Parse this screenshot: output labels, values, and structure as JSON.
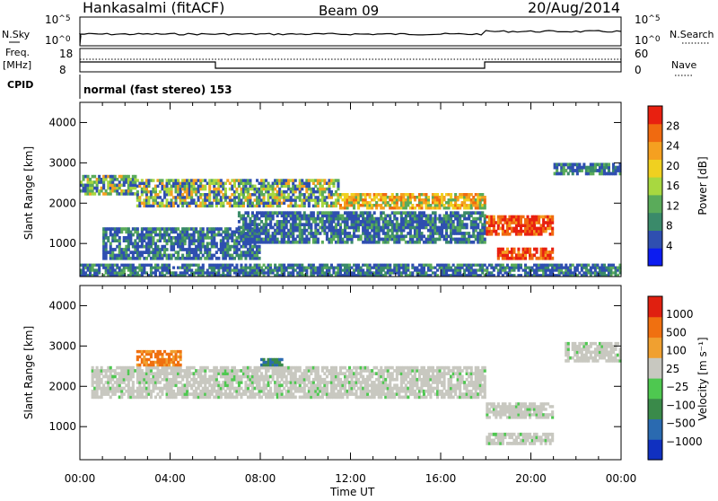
{
  "header": {
    "station": "Hankasalmi (fitACF)",
    "beam": "Beam 09",
    "date": "20/Aug/2014"
  },
  "noise_panel": {
    "left_label": "N.Sky",
    "right_label": "N.Search",
    "left_ticks": [
      {
        "base": "10",
        "exp": "^5"
      },
      {
        "base": "10",
        "exp": "^0"
      }
    ],
    "right_ticks": [
      {
        "base": "10",
        "exp": "^5"
      },
      {
        "base": "10",
        "exp": "^0"
      }
    ]
  },
  "freq_panel": {
    "left_label_1": "Freq.",
    "left_label_2": "[MHz]",
    "right_label": "Nave",
    "left_ticks": [
      "18",
      "8"
    ],
    "right_ticks": [
      "60",
      "0"
    ]
  },
  "cpid": {
    "label": "CPID",
    "value": "normal (fast stereo) 153"
  },
  "chart_data": [
    {
      "type": "heatmap",
      "name": "power",
      "ylabel": "Slant Range [km]",
      "ylim": [
        180,
        4500
      ],
      "yticks": [
        1000,
        2000,
        3000,
        4000
      ],
      "xlim_hours": [
        0,
        24
      ],
      "colorbar": {
        "label": "Power [dB]",
        "ticks": [
          "4",
          "8",
          "12",
          "16",
          "20",
          "24",
          "28"
        ],
        "colors": [
          "#0c1cf0",
          "#2f4fb0",
          "#3a8a6a",
          "#5aab5a",
          "#a8d840",
          "#f0d020",
          "#f5a020",
          "#f06a10",
          "#e82010"
        ]
      },
      "bands": [
        {
          "t": [
            0.0,
            2.5
          ],
          "r": [
            2200,
            2700
          ],
          "level": "mid"
        },
        {
          "t": [
            2.5,
            11.5
          ],
          "r": [
            1900,
            2600
          ],
          "level": "mid"
        },
        {
          "t": [
            11.5,
            18.0
          ],
          "r": [
            1850,
            2250
          ],
          "level": "high"
        },
        {
          "t": [
            1.0,
            8.0
          ],
          "r": [
            600,
            1400
          ],
          "level": "low"
        },
        {
          "t": [
            7.0,
            18.0
          ],
          "r": [
            1000,
            1800
          ],
          "level": "low"
        },
        {
          "t": [
            18.0,
            21.0
          ],
          "r": [
            1200,
            1700
          ],
          "level": "max"
        },
        {
          "t": [
            18.5,
            21.0
          ],
          "r": [
            600,
            900
          ],
          "level": "max"
        },
        {
          "t": [
            21.0,
            24.0
          ],
          "r": [
            2700,
            3000
          ],
          "level": "low"
        },
        {
          "t": [
            0.0,
            24.0
          ],
          "r": [
            180,
            500
          ],
          "level": "low"
        }
      ]
    },
    {
      "type": "heatmap",
      "name": "velocity",
      "ylabel": "Slant Range [km]",
      "ylim": [
        180,
        4500
      ],
      "yticks": [
        1000,
        2000,
        3000,
        4000
      ],
      "xlim_hours": [
        0,
        24
      ],
      "colorbar": {
        "label": "Velocity [m s⁻¹]",
        "ticks": [
          "1000",
          "500",
          "100",
          "25",
          "−25",
          "−100",
          "−500",
          "−1000"
        ],
        "colors": [
          "#1030c0",
          "#2a6ab0",
          "#3a8a4a",
          "#4ec850",
          "#c8c8c0",
          "#f0a030",
          "#f07010",
          "#e02010"
        ]
      },
      "bands": [
        {
          "t": [
            0.5,
            18.0
          ],
          "r": [
            1700,
            2500
          ],
          "level": "gray"
        },
        {
          "t": [
            2.5,
            4.5
          ],
          "r": [
            2500,
            2900
          ],
          "level": "orange"
        },
        {
          "t": [
            8.0,
            9.0
          ],
          "r": [
            2500,
            2700
          ],
          "level": "blue"
        },
        {
          "t": [
            18.0,
            21.0
          ],
          "r": [
            1200,
            1600
          ],
          "level": "gray"
        },
        {
          "t": [
            18.0,
            21.0
          ],
          "r": [
            550,
            850
          ],
          "level": "gray"
        },
        {
          "t": [
            21.5,
            24.0
          ],
          "r": [
            2600,
            3100
          ],
          "level": "gray"
        }
      ]
    }
  ],
  "x_axis": {
    "ticks": [
      "00:00",
      "04:00",
      "08:00",
      "12:00",
      "16:00",
      "20:00",
      "00:00"
    ],
    "label": "Time UT"
  }
}
